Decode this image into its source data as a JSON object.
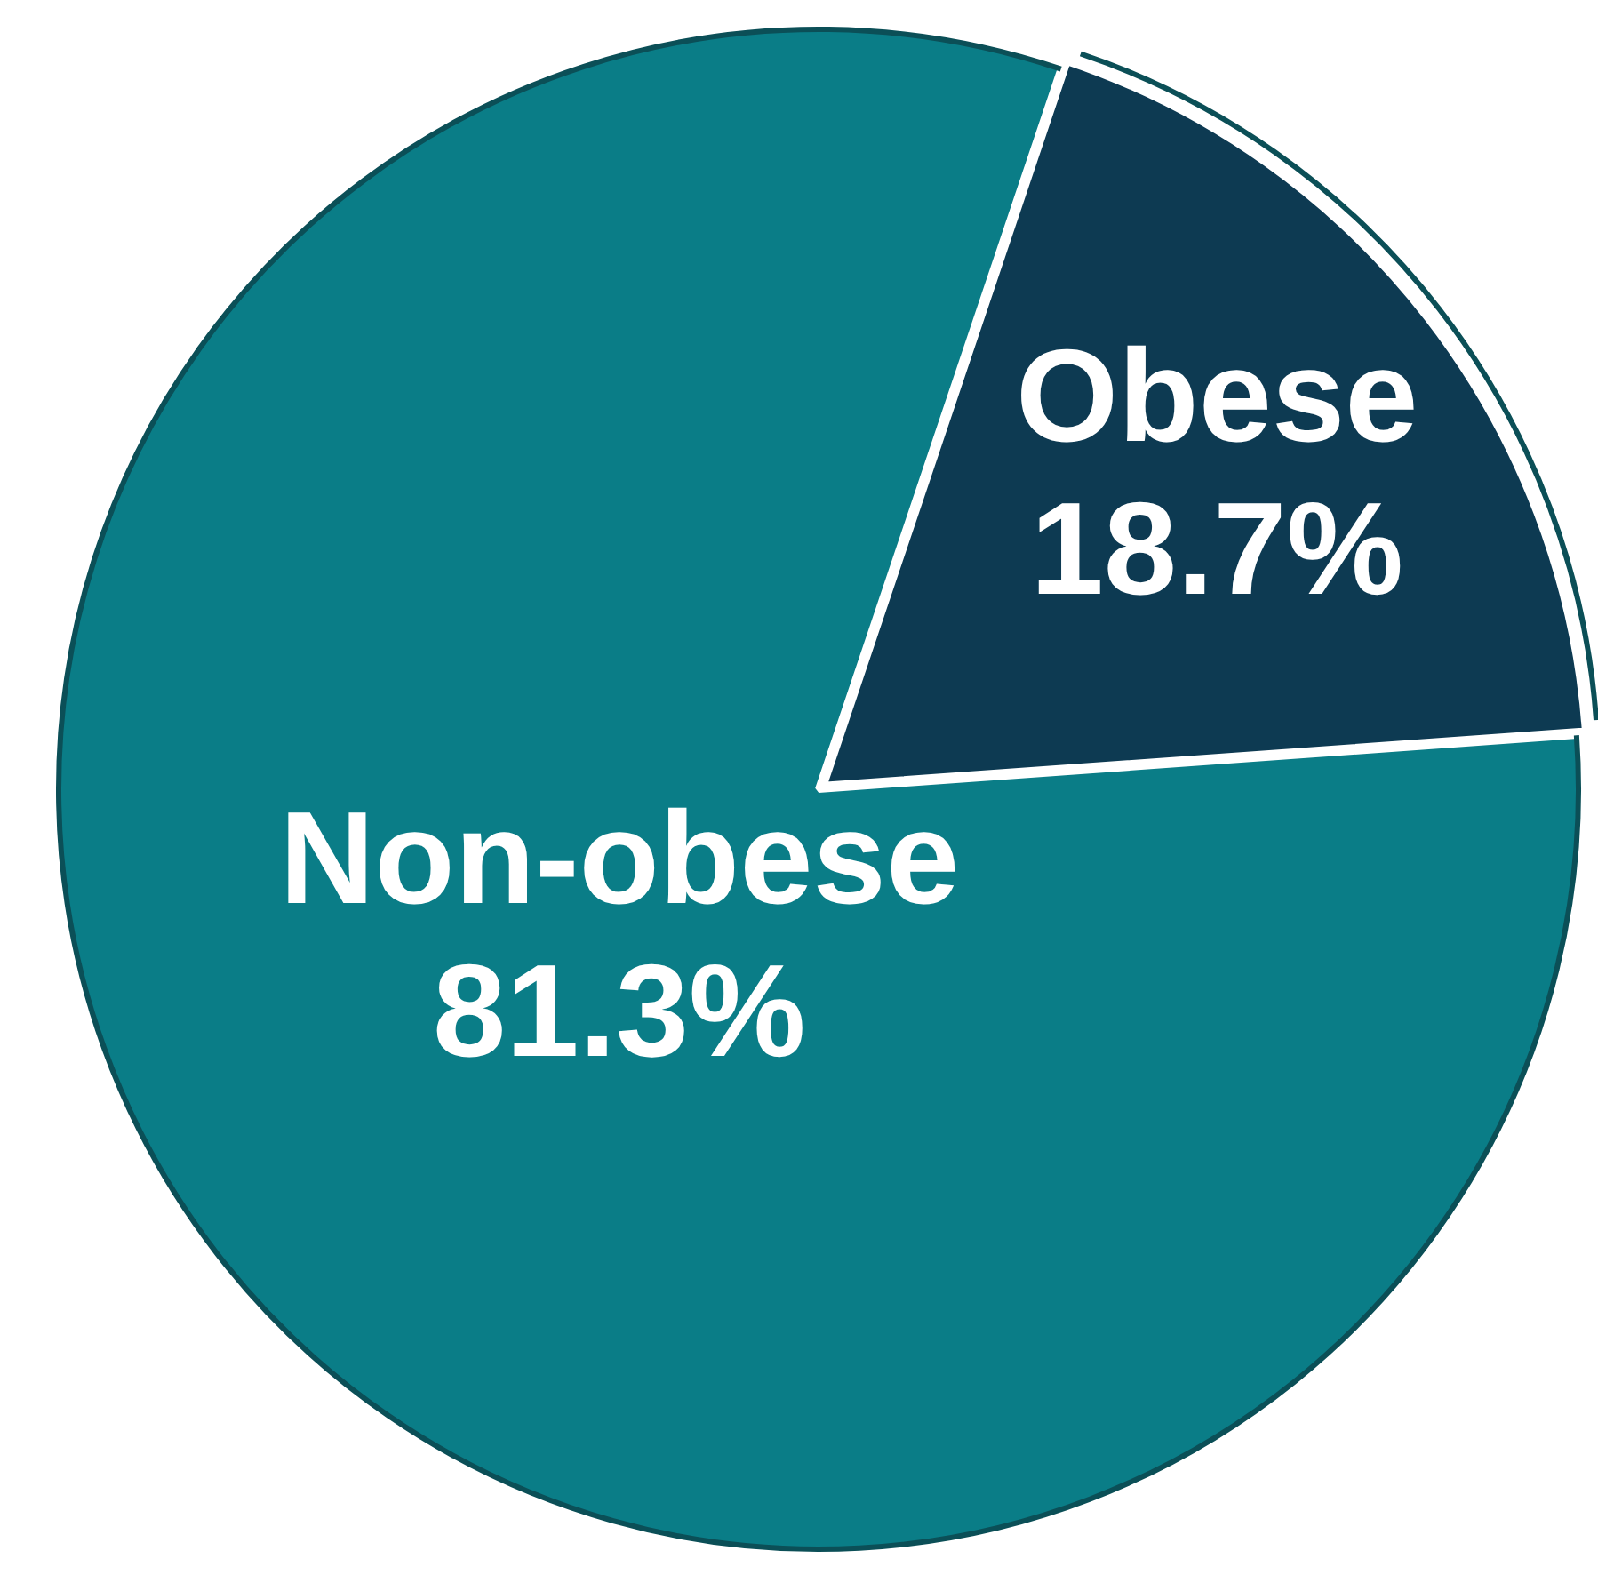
{
  "chart_data": {
    "type": "pie",
    "categories": [
      "Obese",
      "Non-obese"
    ],
    "values": [
      18.7,
      81.3
    ],
    "colors": [
      "#0d3a52",
      "#0a7d87"
    ],
    "value_labels": [
      "18.7%",
      "81.3%"
    ]
  }
}
